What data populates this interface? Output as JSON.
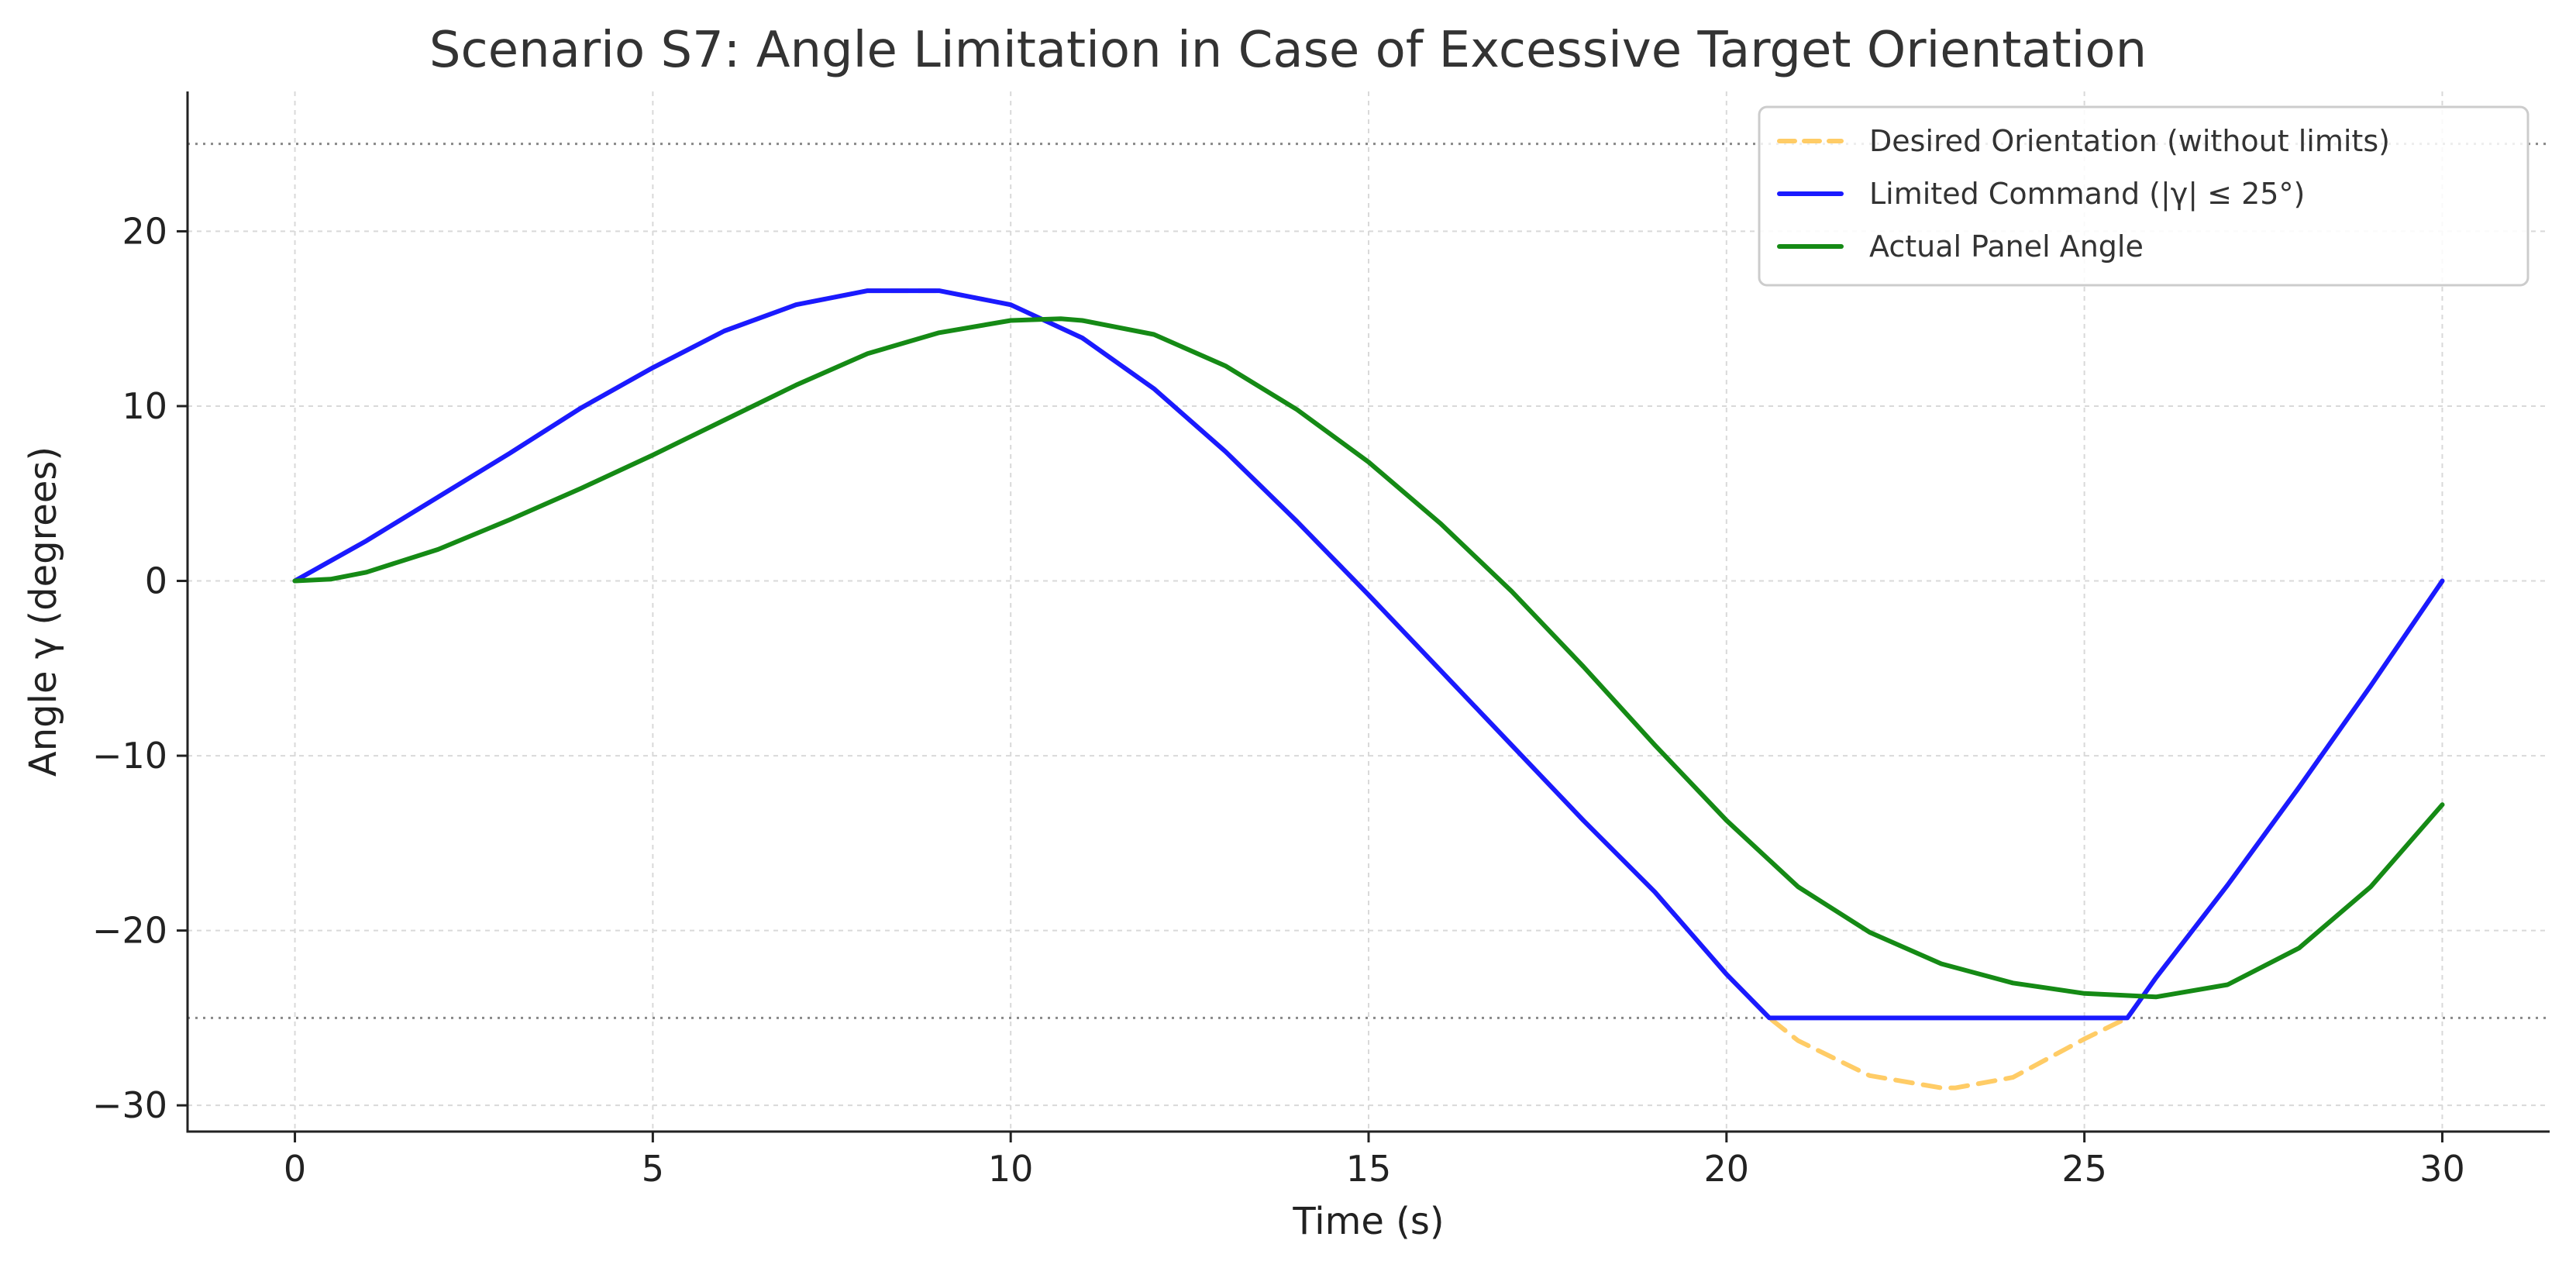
{
  "chart_data": {
    "type": "line",
    "title": "Scenario S7: Angle Limitation in Case of Excessive Target Orientation",
    "xlabel": "Time (s)",
    "ylabel": "Angle γ (degrees)",
    "xlim": [
      -1.5,
      31.5
    ],
    "ylim": [
      -31.5,
      28
    ],
    "xticks": [
      0,
      5,
      10,
      15,
      20,
      25,
      30
    ],
    "yticks": [
      -30,
      -20,
      -10,
      0,
      10,
      20
    ],
    "xtick_labels": [
      "0",
      "5",
      "10",
      "15",
      "20",
      "25",
      "30"
    ],
    "ytick_labels": [
      "−30",
      "−20",
      "−10",
      "0",
      "10",
      "20"
    ],
    "grid": true,
    "limit_lines": [
      25,
      -25
    ],
    "legend_position": "top-right",
    "series": [
      {
        "name": "Desired Orientation (without limits)",
        "color": "#ffcc66",
        "style": "dashed",
        "x": [
          0,
          1,
          2,
          3,
          4,
          5,
          6,
          7,
          8,
          9,
          10,
          11,
          12,
          13,
          14,
          15,
          16,
          17,
          18,
          19,
          20,
          20.6,
          21,
          22,
          23,
          23.2,
          24,
          25,
          25.6,
          26,
          27,
          28,
          29,
          30
        ],
        "y": [
          0,
          2.3,
          4.8,
          7.3,
          9.9,
          12.2,
          14.3,
          15.8,
          16.6,
          16.6,
          15.8,
          13.9,
          11.0,
          7.4,
          3.4,
          -0.8,
          -5.1,
          -9.4,
          -13.7,
          -17.8,
          -22.5,
          -25,
          -26.3,
          -28.3,
          -29.0,
          -29.0,
          -28.4,
          -26.2,
          -25,
          -22.7,
          -17.4,
          -11.8,
          -6.0,
          0
        ]
      },
      {
        "name": "Limited Command (|γ| ≤ 25°)",
        "color": "#1a1aff",
        "style": "solid",
        "x": [
          0,
          1,
          2,
          3,
          4,
          5,
          6,
          7,
          8,
          9,
          10,
          11,
          12,
          13,
          14,
          15,
          16,
          17,
          18,
          19,
          20,
          20.6,
          21,
          22,
          23,
          24,
          25,
          25.6,
          26,
          27,
          28,
          29,
          30
        ],
        "y": [
          0,
          2.3,
          4.8,
          7.3,
          9.9,
          12.2,
          14.3,
          15.8,
          16.6,
          16.6,
          15.8,
          13.9,
          11.0,
          7.4,
          3.4,
          -0.8,
          -5.1,
          -9.4,
          -13.7,
          -17.8,
          -22.5,
          -25,
          -25,
          -25,
          -25,
          -25,
          -25,
          -25,
          -22.7,
          -17.4,
          -11.8,
          -6.0,
          0
        ]
      },
      {
        "name": "Actual Panel Angle",
        "color": "#158a15",
        "style": "solid",
        "x": [
          0,
          0.5,
          1,
          2,
          3,
          4,
          5,
          6,
          7,
          8,
          9,
          10,
          10.7,
          11,
          12,
          13,
          14,
          15,
          16,
          17,
          18,
          19,
          20,
          21,
          22,
          23,
          24,
          25,
          26,
          27,
          28,
          29,
          30
        ],
        "y": [
          0,
          0.1,
          0.5,
          1.8,
          3.5,
          5.3,
          7.2,
          9.2,
          11.2,
          13.0,
          14.2,
          14.9,
          15.0,
          14.9,
          14.1,
          12.3,
          9.8,
          6.8,
          3.3,
          -0.6,
          -4.9,
          -9.4,
          -13.7,
          -17.5,
          -20.1,
          -21.9,
          -23.0,
          -23.6,
          -23.8,
          -23.1,
          -21.0,
          -17.5,
          -12.8
        ]
      }
    ]
  }
}
